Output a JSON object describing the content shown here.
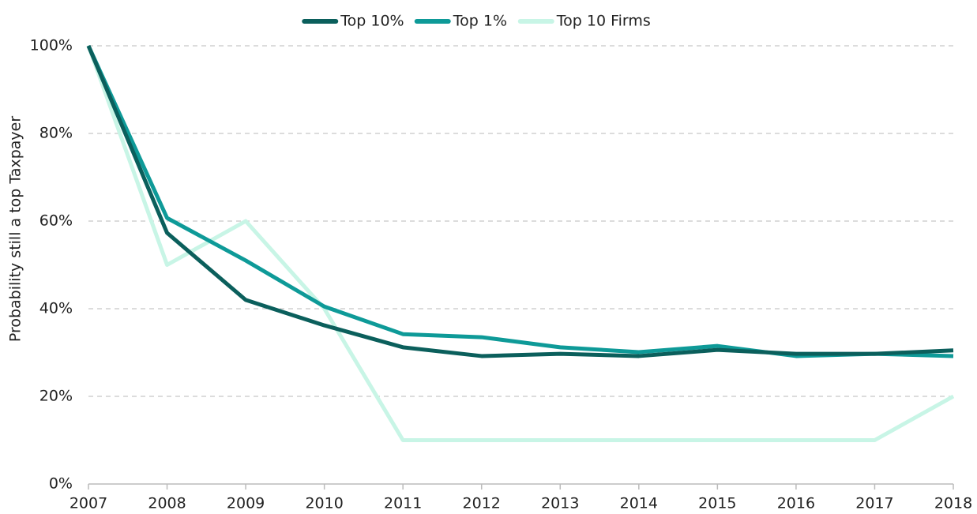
{
  "chart_data": {
    "type": "line",
    "y_label": "Probability still a top Taxpayer",
    "categories": [
      "2007",
      "2008",
      "2009",
      "2010",
      "2011",
      "2012",
      "2013",
      "2014",
      "2015",
      "2016",
      "2017",
      "2018"
    ],
    "series": [
      {
        "name": "Top 10%",
        "color": "#0b5f5c",
        "values": [
          100,
          57.3,
          42,
          36.2,
          31.2,
          29.2,
          29.7,
          29.2,
          30.6,
          29.7,
          29.7,
          30.5
        ]
      },
      {
        "name": "Top 1%",
        "color": "#0e9a98",
        "values": [
          100,
          60.7,
          51,
          40.5,
          34.2,
          33.5,
          31.2,
          30.1,
          31.5,
          29.2,
          29.7,
          29.2
        ]
      },
      {
        "name": "Top 10 Firms",
        "color": "#c8f5e6",
        "values": [
          100,
          50,
          60,
          40,
          10,
          10,
          10,
          10,
          10,
          10,
          10,
          20
        ]
      }
    ],
    "ylim": [
      0,
      100
    ],
    "yticks": [
      {
        "value": 0,
        "label": "0%"
      },
      {
        "value": 20,
        "label": "20%"
      },
      {
        "value": 40,
        "label": "40%"
      },
      {
        "value": 60,
        "label": "60%"
      },
      {
        "value": 80,
        "label": "80%"
      },
      {
        "value": 100,
        "label": "100%"
      }
    ],
    "grid": true,
    "legend": "top"
  }
}
